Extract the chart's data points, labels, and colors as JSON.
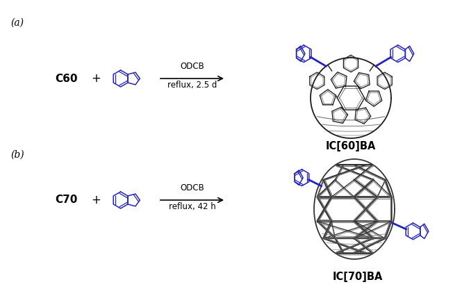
{
  "bg_color": "#ffffff",
  "text_color": "#000000",
  "blue_color": "#2222bb",
  "dark_color": "#222222",
  "label_a": "(a)",
  "label_b": "(b)",
  "reactant_a": "C60",
  "reactant_b": "C70",
  "plus": "+",
  "arrow_top_text": "ODCB",
  "arrow_bottom_a": "reflux, 2.5 d",
  "arrow_bottom_b": "reflux, 42 h",
  "product_a": "IC[60]BA",
  "product_b": "IC[70]BA",
  "fig_w": 6.65,
  "fig_h": 4.16,
  "dpi": 100
}
